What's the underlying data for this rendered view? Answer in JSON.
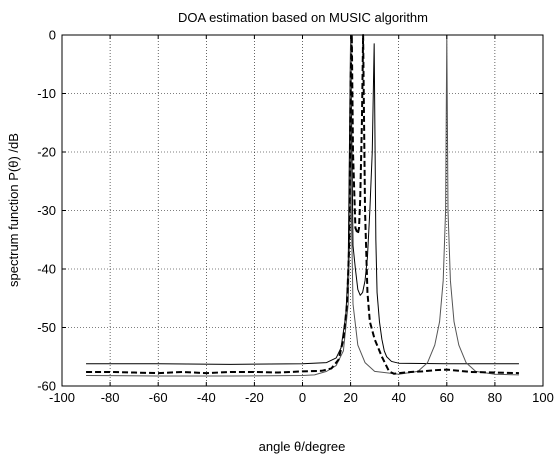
{
  "chart_data": {
    "type": "line",
    "title": "DOA estimation based on MUSIC algorithm",
    "xlabel": "angle θ/degree",
    "ylabel": "spectrum function P(θ) /dB",
    "xlim": [
      -100,
      100
    ],
    "ylim": [
      -60,
      0
    ],
    "xticks": [
      -100,
      -80,
      -60,
      -40,
      -20,
      0,
      20,
      40,
      60,
      80,
      100
    ],
    "yticks": [
      0,
      -10,
      -20,
      -30,
      -40,
      -50,
      -60
    ],
    "grid": true,
    "legend": "none",
    "series": [
      {
        "style": "solid thin",
        "color": "#000000",
        "points": [
          [
            -90,
            -56.2
          ],
          [
            -60,
            -56.2
          ],
          [
            -30,
            -56.3
          ],
          [
            0,
            -56.2
          ],
          [
            10,
            -56.0
          ],
          [
            14,
            -55.2
          ],
          [
            16,
            -53.5
          ],
          [
            18,
            -48
          ],
          [
            19,
            -40
          ],
          [
            20,
            0
          ],
          [
            21,
            -36
          ],
          [
            22,
            -40
          ],
          [
            23,
            -43.5
          ],
          [
            24,
            -44.5
          ],
          [
            25,
            -44
          ],
          [
            26,
            -42
          ],
          [
            27,
            -38
          ],
          [
            28,
            -30
          ],
          [
            29,
            -20
          ],
          [
            29.8,
            -1.5
          ],
          [
            30.5,
            -35
          ],
          [
            31,
            -44
          ],
          [
            32,
            -49
          ],
          [
            33,
            -52
          ],
          [
            34,
            -54
          ],
          [
            35,
            -55
          ],
          [
            37,
            -55.8
          ],
          [
            40,
            -56.1
          ],
          [
            60,
            -56.2
          ],
          [
            90,
            -56.2
          ]
        ]
      },
      {
        "style": "solid thin",
        "color": "#555555",
        "points": [
          [
            -90,
            -58.2
          ],
          [
            -60,
            -58.3
          ],
          [
            -30,
            -58.3
          ],
          [
            0,
            -58.2
          ],
          [
            5,
            -58.1
          ],
          [
            10,
            -57.5
          ],
          [
            14,
            -56.5
          ],
          [
            17,
            -54
          ],
          [
            19,
            -46
          ],
          [
            19.8,
            -30
          ],
          [
            20,
            0
          ],
          [
            20.3,
            -30
          ],
          [
            21,
            -46
          ],
          [
            23,
            -53
          ],
          [
            26,
            -56
          ],
          [
            30,
            -57.5
          ],
          [
            40,
            -58
          ],
          [
            48,
            -57.5
          ],
          [
            52,
            -56
          ],
          [
            55,
            -53
          ],
          [
            57,
            -49
          ],
          [
            58.5,
            -42
          ],
          [
            59.5,
            -30
          ],
          [
            60,
            0
          ],
          [
            60.5,
            -30
          ],
          [
            61.5,
            -42
          ],
          [
            63,
            -49
          ],
          [
            65,
            -53
          ],
          [
            68,
            -56
          ],
          [
            72,
            -57.5
          ],
          [
            80,
            -58
          ],
          [
            90,
            -58.1
          ]
        ]
      },
      {
        "style": "dashed thick",
        "color": "#000000",
        "points": [
          [
            -90,
            -57.6
          ],
          [
            -80,
            -57.6
          ],
          [
            -70,
            -57.7
          ],
          [
            -60,
            -57.8
          ],
          [
            -50,
            -57.6
          ],
          [
            -40,
            -57.8
          ],
          [
            -30,
            -57.6
          ],
          [
            -20,
            -57.6
          ],
          [
            -10,
            -57.7
          ],
          [
            0,
            -57.5
          ],
          [
            8,
            -57.4
          ],
          [
            12,
            -57
          ],
          [
            15,
            -55.5
          ],
          [
            17,
            -52
          ],
          [
            18.5,
            -46
          ],
          [
            19.5,
            -35
          ],
          [
            20,
            -8
          ],
          [
            20.5,
            0
          ],
          [
            21,
            -20
          ],
          [
            22,
            -33
          ],
          [
            23,
            -34
          ],
          [
            23.5,
            -33
          ],
          [
            24,
            -28
          ],
          [
            24.7,
            -15
          ],
          [
            25.2,
            0
          ],
          [
            26,
            -30
          ],
          [
            27,
            -44
          ],
          [
            28,
            -49
          ],
          [
            30,
            -52
          ],
          [
            33,
            -55
          ],
          [
            36,
            -57.5
          ],
          [
            38,
            -57.9
          ],
          [
            45,
            -57.6
          ],
          [
            50,
            -57.5
          ],
          [
            55,
            -57.3
          ],
          [
            60,
            -57.2
          ],
          [
            65,
            -57.4
          ],
          [
            70,
            -57.6
          ],
          [
            80,
            -57.7
          ],
          [
            90,
            -57.8
          ]
        ]
      }
    ]
  }
}
